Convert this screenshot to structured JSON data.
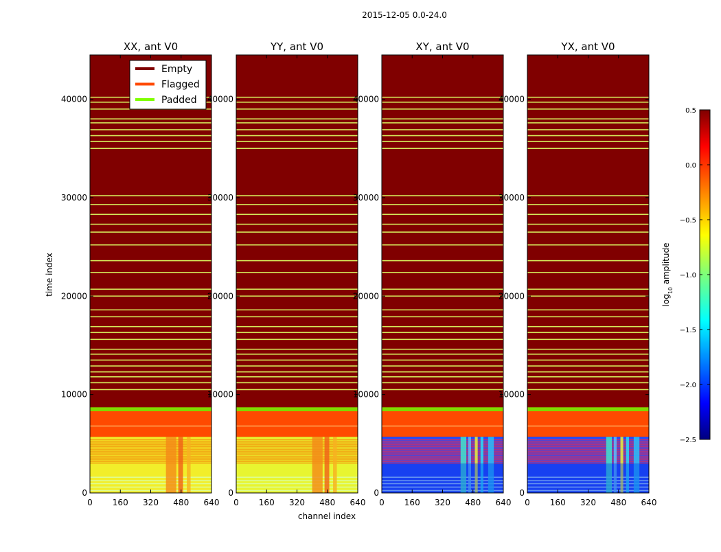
{
  "chart_data": {
    "type": "heatmap",
    "suptitle": "2015-12-05 0.0-24.0",
    "xlabel": "channel index",
    "ylabel": "time index",
    "x_range": [
      0,
      640
    ],
    "y_range": [
      0,
      44500
    ],
    "x_ticks": [
      "0",
      "160",
      "320",
      "480",
      "640"
    ],
    "y_ticks": [
      "0",
      "10000",
      "20000",
      "30000",
      "40000"
    ],
    "y_tick_values": [
      0,
      10000,
      20000,
      30000,
      40000
    ],
    "x_tick_values": [
      0,
      160,
      320,
      480,
      640
    ],
    "panels": [
      {
        "title": "XX, ant V0",
        "data_color": "#f2ee2a"
      },
      {
        "title": "YY, ant V0",
        "data_color": "#e8f530"
      },
      {
        "title": "XY, ant V0",
        "data_color": "#1f4dff"
      },
      {
        "title": "YX, ant V0",
        "data_color": "#1f4dff"
      }
    ],
    "regions": {
      "empty_from": 8700,
      "padded": [
        8300,
        8700
      ],
      "flagged": [
        5700,
        8300
      ],
      "data_to": 5700
    },
    "empty_gap_rows": [
      10500,
      11200,
      11800,
      12300,
      12900,
      13500,
      14100,
      14600,
      15600,
      16300,
      16900,
      17900,
      18600,
      20000,
      20700,
      22400,
      23600,
      25200,
      26500,
      27300,
      28300,
      29300,
      30200,
      35000,
      35700,
      36300,
      36900,
      37600,
      38000,
      39000,
      39700,
      40200
    ],
    "legend": {
      "location": "upper-right of first panel",
      "entries": [
        {
          "label": "Empty",
          "color": "#800000"
        },
        {
          "label": "Flagged",
          "color": "#ff4a00"
        },
        {
          "label": "Padded",
          "color": "#80ff00"
        }
      ]
    },
    "colorbar": {
      "label": "log10 amplitude",
      "label_main": "log",
      "label_sub": "10",
      "label_rest": " amplitude",
      "range": [
        -2.5,
        0.5
      ],
      "ticks": [
        "0.5",
        "0.0",
        "−0.5",
        "−1.0",
        "−1.5",
        "−2.0",
        "−2.5"
      ],
      "tick_values": [
        0.5,
        0.0,
        -0.5,
        -1.0,
        -1.5,
        -2.0,
        -2.5
      ],
      "colormap": "jet"
    }
  }
}
